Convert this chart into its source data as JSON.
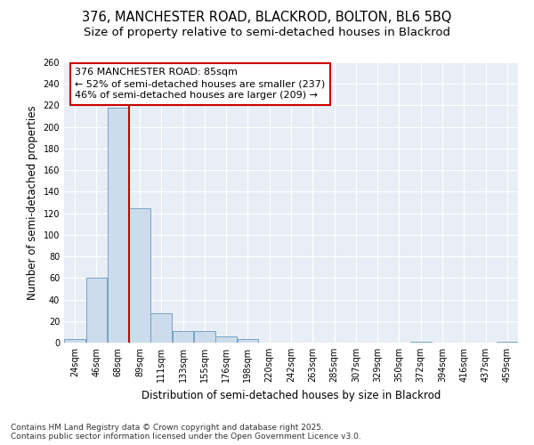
{
  "title_line1": "376, MANCHESTER ROAD, BLACKROD, BOLTON, BL6 5BQ",
  "title_line2": "Size of property relative to semi-detached houses in Blackrod",
  "xlabel": "Distribution of semi-detached houses by size in Blackrod",
  "ylabel": "Number of semi-detached properties",
  "bin_labels": [
    "24sqm",
    "46sqm",
    "68sqm",
    "89sqm",
    "111sqm",
    "133sqm",
    "155sqm",
    "176sqm",
    "198sqm",
    "220sqm",
    "242sqm",
    "263sqm",
    "285sqm",
    "307sqm",
    "329sqm",
    "350sqm",
    "372sqm",
    "394sqm",
    "416sqm",
    "437sqm",
    "459sqm"
  ],
  "values": [
    3,
    60,
    218,
    125,
    27,
    11,
    11,
    6,
    3,
    0,
    0,
    0,
    0,
    0,
    0,
    0,
    1,
    0,
    0,
    0,
    1
  ],
  "bar_color": "#cddcec",
  "bar_edge_color": "#6699bb",
  "annotation_text": "376 MANCHESTER ROAD: 85sqm\n← 52% of semi-detached houses are smaller (237)\n46% of semi-detached houses are larger (209) →",
  "annotation_box_color": "white",
  "annotation_box_edge_color": "#cc0000",
  "red_line_x": 2.5,
  "ylim": [
    0,
    260
  ],
  "yticks": [
    0,
    20,
    40,
    60,
    80,
    100,
    120,
    140,
    160,
    180,
    200,
    220,
    240,
    260
  ],
  "background_color": "#e8eef5",
  "grid_color": "white",
  "footer_text": "Contains HM Land Registry data © Crown copyright and database right 2025.\nContains public sector information licensed under the Open Government Licence v3.0.",
  "title_fontsize": 10.5,
  "subtitle_fontsize": 9.5,
  "axis_label_fontsize": 8.5,
  "tick_fontsize": 7,
  "annotation_fontsize": 8,
  "footer_fontsize": 6.5
}
